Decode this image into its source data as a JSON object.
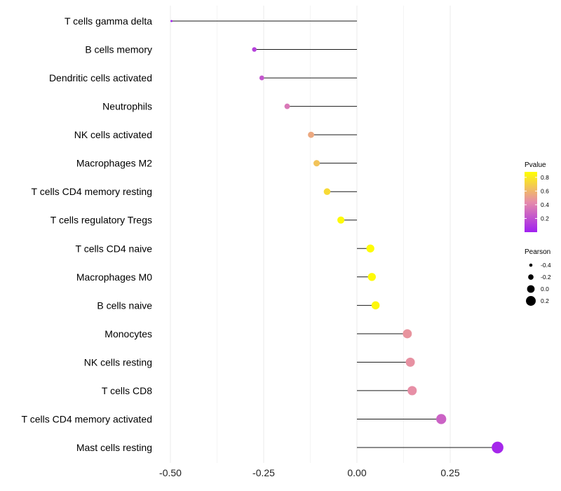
{
  "chart_data": {
    "type": "lollipop",
    "title": "",
    "xlabel": "",
    "ylabel": "",
    "xlim": [
      -0.55,
      0.4
    ],
    "xticks": [
      -0.5,
      -0.25,
      0.0,
      0.25
    ],
    "xtick_labels": [
      "-0.50",
      "-0.25",
      "0.00",
      "0.25"
    ],
    "grid": "vertical",
    "categories": [
      "T cells gamma delta",
      "B cells memory",
      "Dendritic cells activated",
      "Neutrophils",
      "NK cells activated",
      "Macrophages M2",
      "T cells CD4 memory resting",
      "T cells regulatory  Tregs ",
      "T cells CD4 naive",
      "Macrophages M0",
      "B cells naive",
      "Monocytes",
      "NK cells resting",
      "T cells CD8",
      "T cells CD4 memory activated",
      "Mast cells resting"
    ],
    "pearson": [
      -0.497,
      -0.275,
      -0.255,
      -0.187,
      -0.123,
      -0.108,
      -0.08,
      -0.043,
      0.036,
      0.04,
      0.05,
      0.135,
      0.143,
      0.148,
      0.226,
      0.377
    ],
    "pvalue": [
      0.01,
      0.13,
      0.22,
      0.36,
      0.55,
      0.65,
      0.74,
      0.86,
      0.87,
      0.86,
      0.85,
      0.47,
      0.46,
      0.45,
      0.27,
      0.03
    ],
    "legend": {
      "position": "right",
      "color": {
        "title": "Pvalue",
        "ticks": [
          0.2,
          0.4,
          0.6,
          0.8
        ],
        "tick_labels": [
          "0.2",
          "0.4",
          "0.6",
          "0.8"
        ],
        "range": [
          0.0,
          0.88
        ],
        "low_color": "#a020f0",
        "high_color": "#ffff00"
      },
      "size": {
        "title": "Pearson",
        "values": [
          -0.4,
          -0.2,
          0.0,
          0.2
        ],
        "labels": [
          "-0.4",
          "-0.2",
          "0.0",
          "0.2"
        ]
      }
    }
  }
}
